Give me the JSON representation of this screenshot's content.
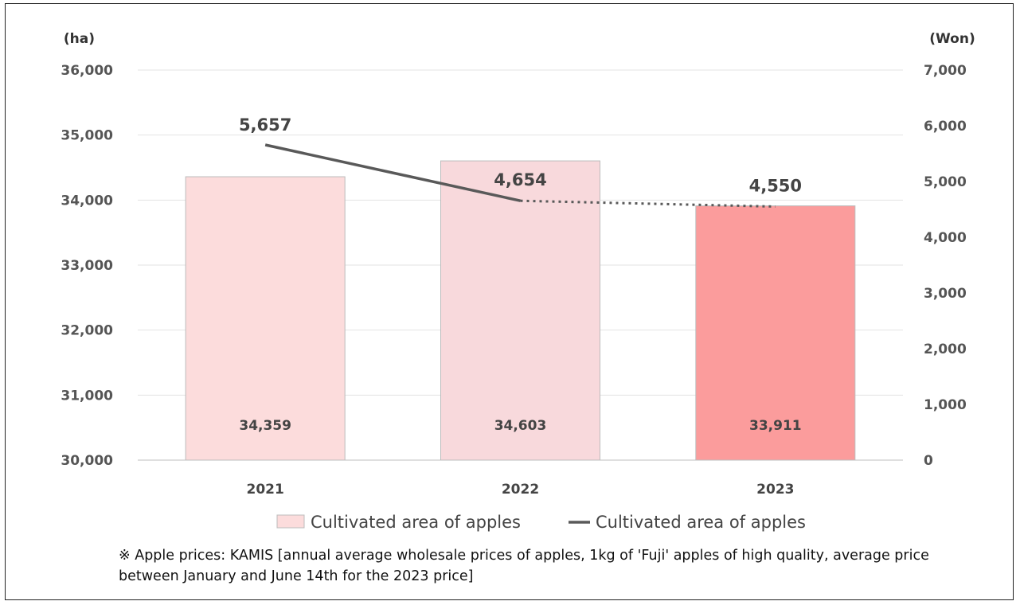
{
  "chart_data": {
    "type": "bar+line",
    "categories": [
      "2021",
      "2022",
      "2023"
    ],
    "left_axis": {
      "unit": "(ha)",
      "ylim": [
        30000,
        36000
      ],
      "ticks": [
        "30,000",
        "31,000",
        "32,000",
        "33,000",
        "34,000",
        "35,000",
        "36,000"
      ]
    },
    "right_axis": {
      "unit": "(Won)",
      "ylim": [
        0,
        7000
      ],
      "ticks": [
        "0",
        "1,000",
        "2,000",
        "3,000",
        "4,000",
        "5,000",
        "6,000",
        "7,000"
      ]
    },
    "bars": {
      "name": "Cultivated area of apples",
      "values": [
        34359,
        34603,
        33911
      ],
      "labels": [
        "34,359",
        "34,603",
        "33,911"
      ],
      "colors": [
        "#fcdcdc",
        "#f8d9dc",
        "#fb9c9c"
      ]
    },
    "line": {
      "name": "Cultivated area of apples",
      "values": [
        5657,
        4654,
        4550
      ],
      "labels": [
        "5,657",
        "4,654",
        "4,550"
      ],
      "color": "#595959",
      "dotted_last_segment": true
    },
    "grid": true,
    "legend_position": "bottom"
  },
  "note": "※ Apple prices: KAMIS [annual average wholesale prices of apples, 1kg of 'Fuji' apples of high quality, average price between January and June 14th for the 2023 price]"
}
